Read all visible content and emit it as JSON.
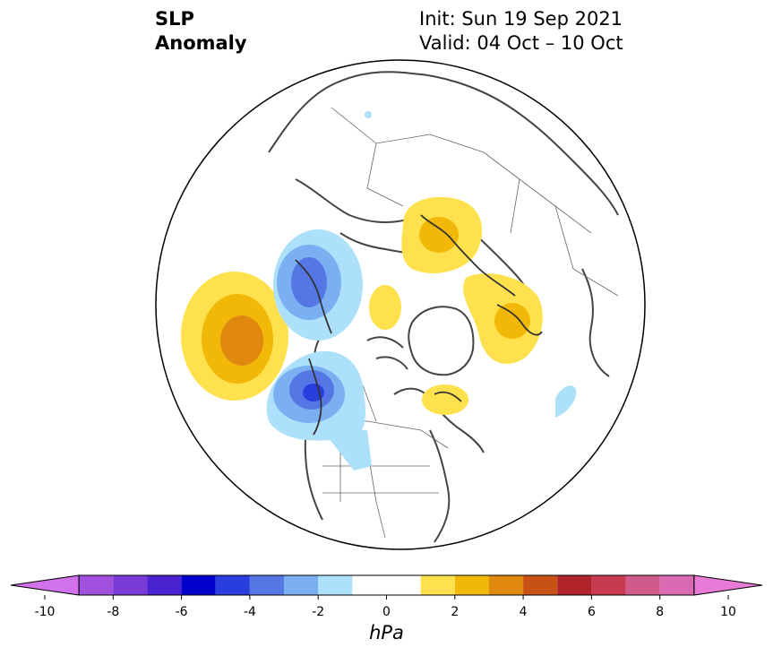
{
  "title": {
    "variable_line1": "SLP",
    "variable_line2": "Anomaly",
    "init": "Init: Sun 19 Sep 2021",
    "valid": "Valid: 04 Oct – 10 Oct"
  },
  "map": {
    "projection": "north-polar-stereographic",
    "region": "Northern Hemisphere / North Pacific – North America – North Atlantic",
    "anomalies": [
      {
        "name": "north-pacific-high",
        "sign": "positive",
        "peak_hpa": 3
      },
      {
        "name": "aleutian-low",
        "sign": "negative",
        "peak_hpa": -4
      },
      {
        "name": "gulf-of-alaska-low",
        "sign": "negative",
        "peak_hpa": -5
      },
      {
        "name": "siberia-high",
        "sign": "positive",
        "peak_hpa": 2
      },
      {
        "name": "scandinavia-high",
        "sign": "positive",
        "peak_hpa": 2
      },
      {
        "name": "arctic-high",
        "sign": "positive",
        "peak_hpa": 1
      },
      {
        "name": "hudson-bay-high",
        "sign": "positive",
        "peak_hpa": 1
      },
      {
        "name": "atlantic-low",
        "sign": "negative",
        "peak_hpa": -1
      }
    ]
  },
  "colorbar": {
    "unit": "hPa",
    "min": -10,
    "max": 10,
    "tick_labels": [
      "-10",
      "-8",
      "-6",
      "-4",
      "-2",
      "0",
      "2",
      "4",
      "6",
      "8",
      "10"
    ],
    "colors": [
      "#a050dc",
      "#7a3ad8",
      "#4a22d0",
      "#0000cc",
      "#2a3ede",
      "#5577e6",
      "#7ab0f2",
      "#ade0fa",
      "#ffffff",
      "#ffe14d",
      "#f2b807",
      "#e0880f",
      "#c85214",
      "#b0232a",
      "#c83a50",
      "#d05a8a",
      "#da6ab4"
    ],
    "extend_low_color": "#d272ea",
    "extend_high_color": "#e87ad8"
  }
}
